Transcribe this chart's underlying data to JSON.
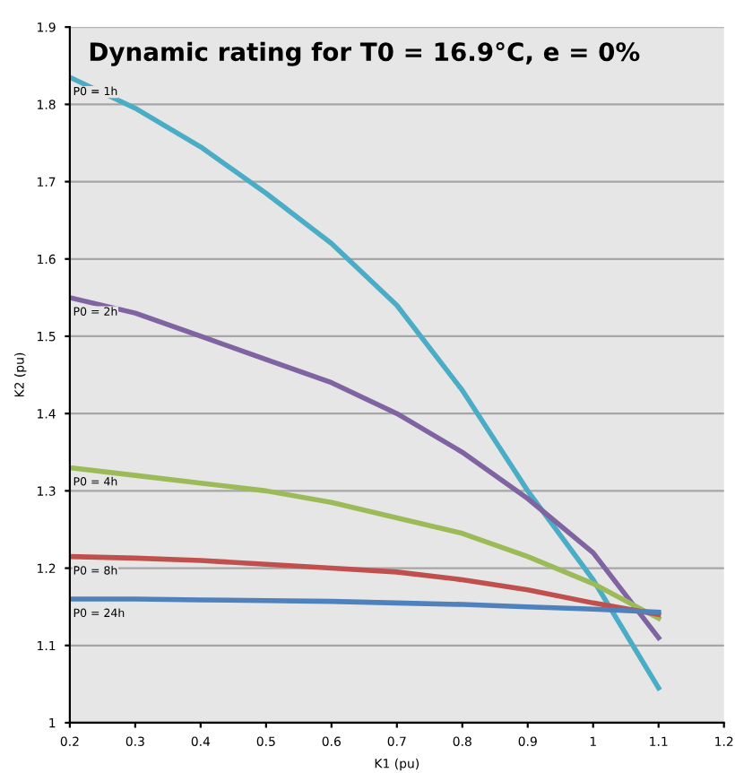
{
  "chart_data": {
    "type": "line",
    "title": "Dynamic rating for T0 = 16.9°C, e = 0%",
    "xlabel": "K1 (pu)",
    "ylabel": "K2 (pu)",
    "x": [
      0.2,
      0.3,
      0.4,
      0.5,
      0.6,
      0.7,
      0.8,
      0.9,
      1.0,
      1.1
    ],
    "series": [
      {
        "name": "P0 = 1h",
        "color": "#4bacc6",
        "values": [
          1.835,
          1.795,
          1.745,
          1.685,
          1.62,
          1.54,
          1.43,
          1.3,
          1.185,
          1.045
        ]
      },
      {
        "name": "P0 = 2h",
        "color": "#8064a2",
        "values": [
          1.55,
          1.53,
          1.5,
          1.47,
          1.44,
          1.4,
          1.35,
          1.29,
          1.22,
          1.11
        ]
      },
      {
        "name": "P0 = 4h",
        "color": "#9bbb59",
        "values": [
          1.33,
          1.32,
          1.31,
          1.3,
          1.285,
          1.265,
          1.245,
          1.215,
          1.18,
          1.135
        ]
      },
      {
        "name": "P0 = 8h",
        "color": "#c0504d",
        "values": [
          1.215,
          1.213,
          1.21,
          1.205,
          1.2,
          1.195,
          1.185,
          1.172,
          1.155,
          1.14
        ]
      },
      {
        "name": "P0 = 24h",
        "color": "#4f81bd",
        "values": [
          1.16,
          1.16,
          1.159,
          1.158,
          1.157,
          1.155,
          1.153,
          1.15,
          1.147,
          1.143
        ]
      }
    ],
    "xlim": [
      0.2,
      1.2
    ],
    "xticks": [
      0.2,
      0.3,
      0.4,
      0.5,
      0.6,
      0.7,
      0.8,
      0.9,
      1,
      1.1,
      1.2
    ],
    "ylim": [
      1,
      1.9
    ],
    "yticks": [
      1,
      1.1,
      1.2,
      1.3,
      1.4,
      1.5,
      1.6,
      1.7,
      1.8,
      1.9
    ],
    "grid": "y",
    "legend": false,
    "marker": "none",
    "line_style": "solid"
  }
}
